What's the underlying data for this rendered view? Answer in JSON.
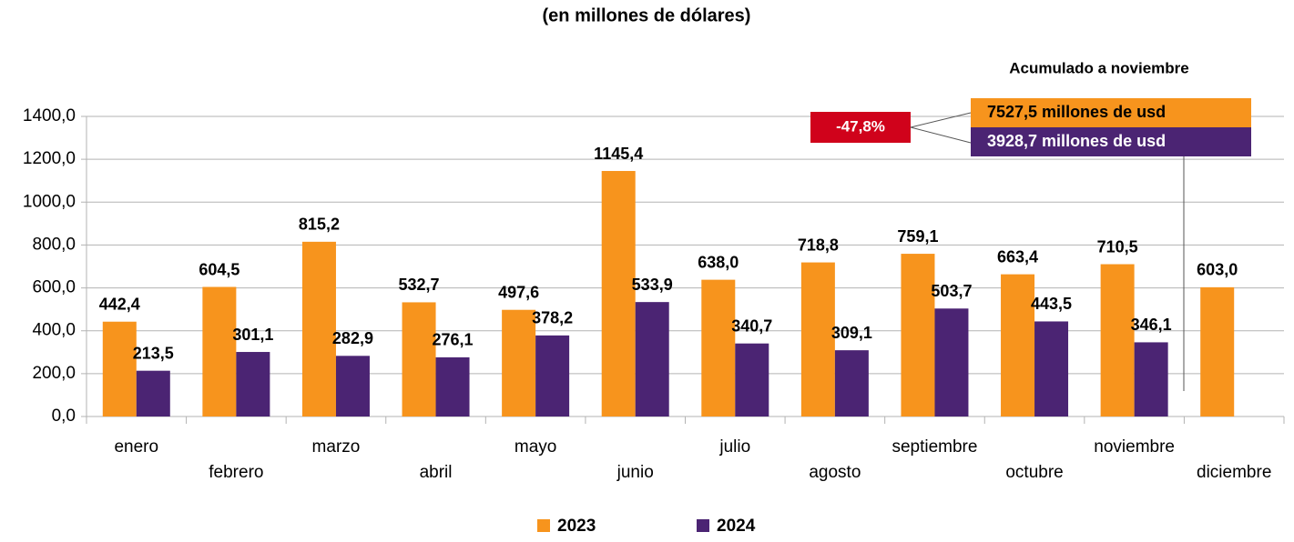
{
  "chart_data": {
    "type": "bar",
    "title": "(en millones de dólares)",
    "categories": [
      "enero",
      "febrero",
      "marzo",
      "abril",
      "mayo",
      "junio",
      "julio",
      "agosto",
      "septiembre",
      "octubre",
      "noviembre",
      "diciembre"
    ],
    "series": [
      {
        "name": "2023",
        "color": "#f7941d",
        "values": [
          442.4,
          604.5,
          815.2,
          532.7,
          497.6,
          1145.4,
          638.0,
          718.8,
          759.1,
          663.4,
          710.5,
          603.0
        ],
        "value_labels": [
          "442,4",
          "604,5",
          "815,2",
          "532,7",
          "497,6",
          "1145,4",
          "638,0",
          "718,8",
          "759,1",
          "663,4",
          "710,5",
          "603,0"
        ]
      },
      {
        "name": "2024",
        "color": "#4b2473",
        "values": [
          213.5,
          301.1,
          282.9,
          276.1,
          378.2,
          533.9,
          340.7,
          309.1,
          503.7,
          443.5,
          346.1,
          null
        ],
        "value_labels": [
          "213,5",
          "301,1",
          "282,9",
          "276,1",
          "378,2",
          "533,9",
          "340,7",
          "309,1",
          "503,7",
          "443,5",
          "346,1",
          null
        ]
      }
    ],
    "ylim": [
      0,
      1400
    ],
    "yticks": [
      {
        "value": 0,
        "label": "0,0"
      },
      {
        "value": 200,
        "label": "200,0"
      },
      {
        "value": 400,
        "label": "400,0"
      },
      {
        "value": 600,
        "label": "600,0"
      },
      {
        "value": 800,
        "label": "800,0"
      },
      {
        "value": 1000,
        "label": "1000,0"
      },
      {
        "value": 1200,
        "label": "1200,0"
      },
      {
        "value": 1400,
        "label": "1400,0"
      }
    ],
    "grid": true,
    "annotations": {
      "cumulative_title": "Acumulado a noviembre",
      "total_2023": "7527,5 millones de usd",
      "total_2024": "3928,7 millones de usd",
      "change": "-47,8%"
    }
  }
}
